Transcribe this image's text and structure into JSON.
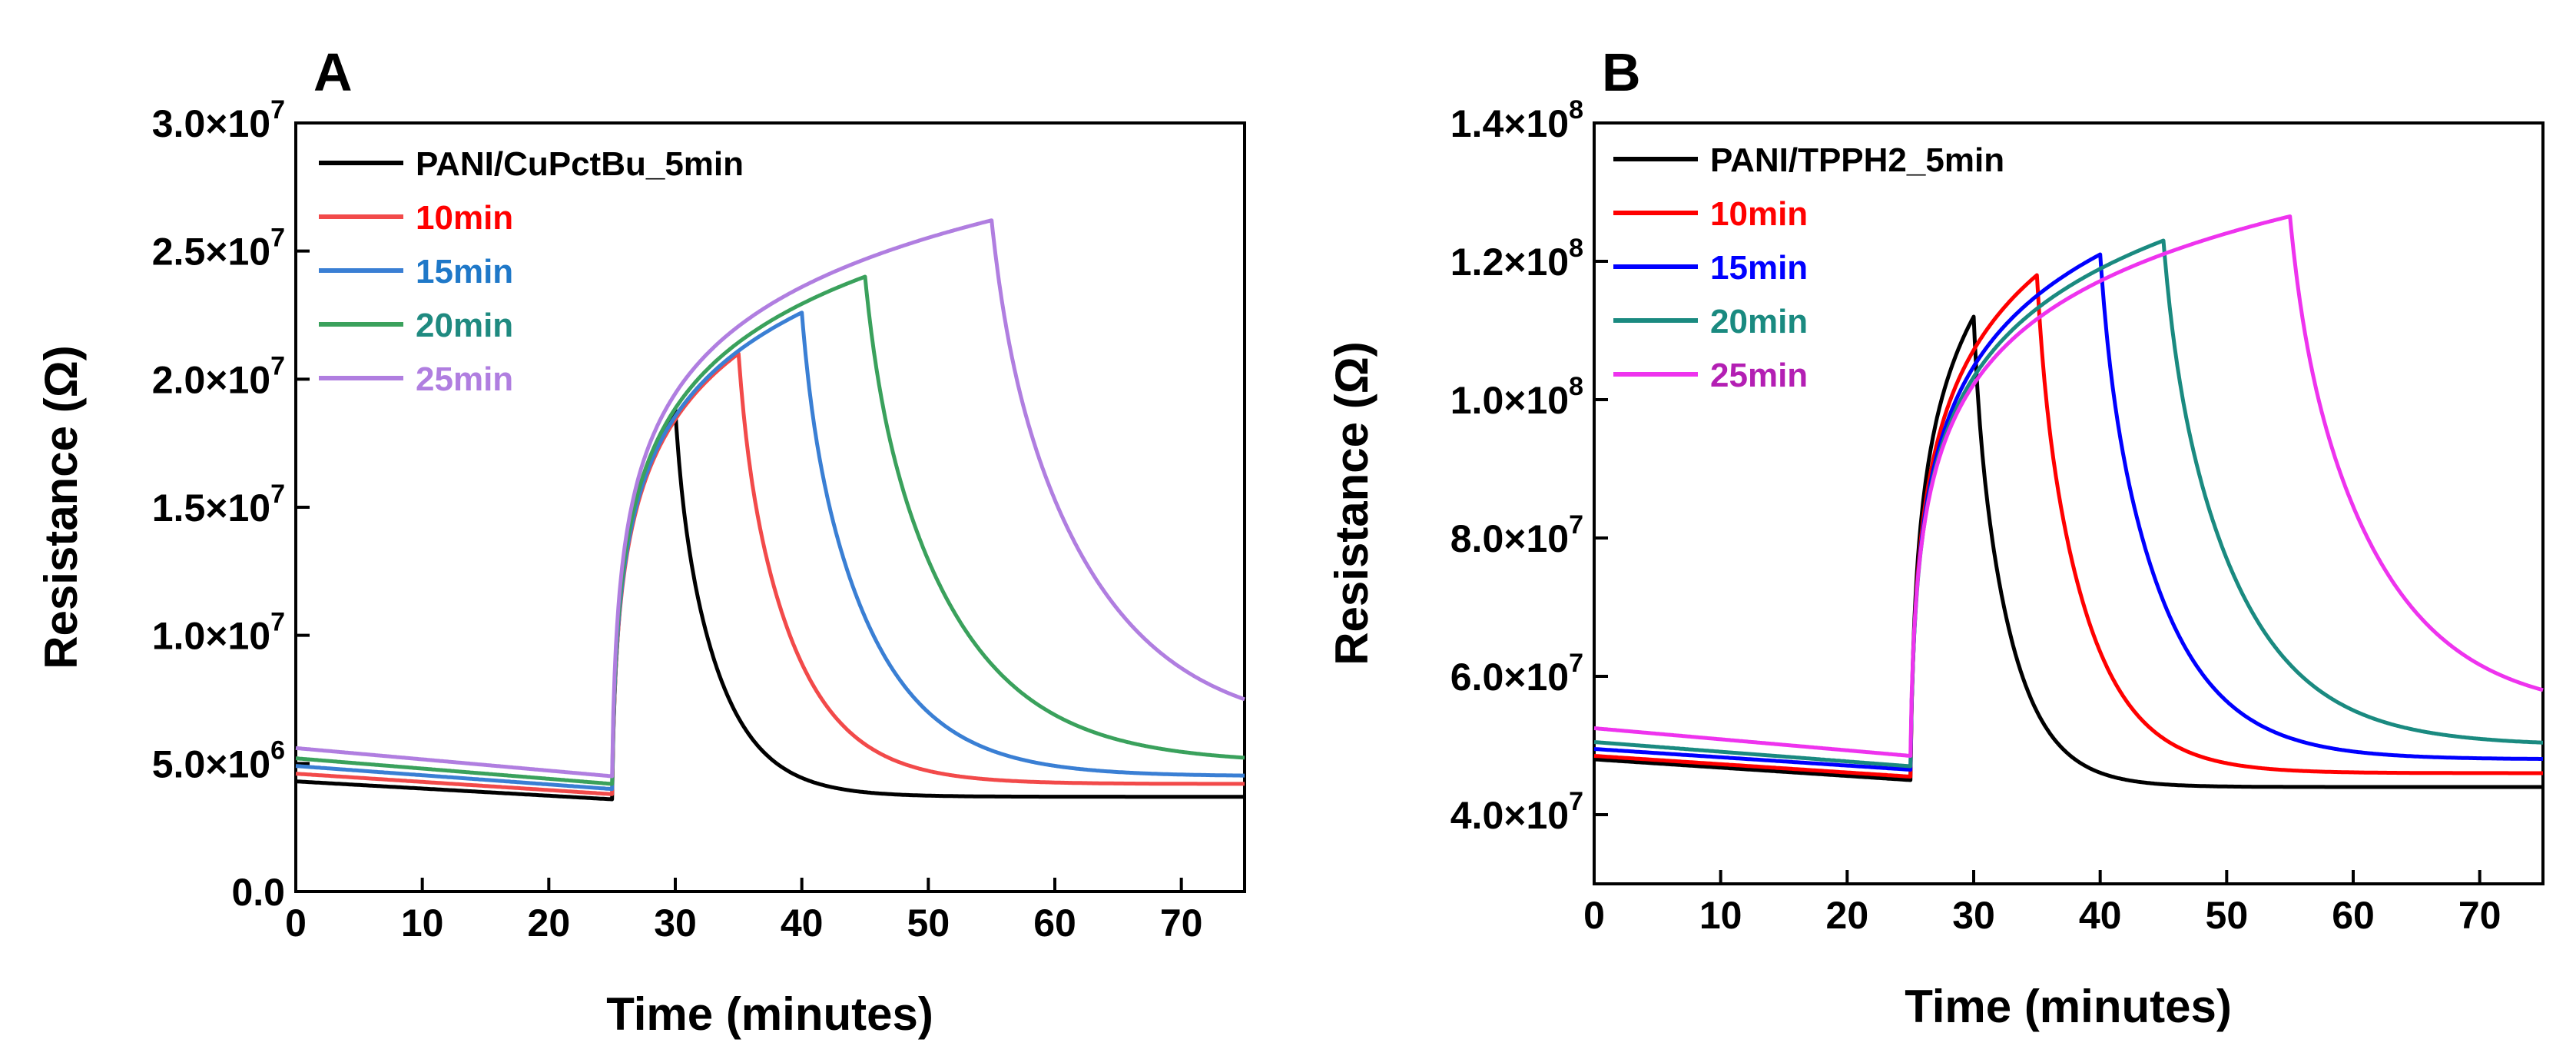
{
  "figure": {
    "x_tick_labels": [
      "0",
      "10",
      "20",
      "30",
      "40",
      "50",
      "60",
      "70"
    ]
  },
  "chart_data": [
    {
      "type": "line",
      "panel": "A",
      "xlabel": "Time (minutes)",
      "ylabel": "Resistance (Ω)",
      "xlim": [
        0,
        75
      ],
      "ylim": [
        0,
        30000000
      ],
      "ytick_values": [
        0,
        5000000,
        10000000,
        15000000,
        20000000,
        25000000,
        30000000
      ],
      "ytick_labels": [
        {
          "mantissa": "0.0",
          "exp": ""
        },
        {
          "mantissa": "5.0×10",
          "exp": "6"
        },
        {
          "mantissa": "1.0×10",
          "exp": "7"
        },
        {
          "mantissa": "1.5×10",
          "exp": "7"
        },
        {
          "mantissa": "2.0×10",
          "exp": "7"
        },
        {
          "mantissa": "2.5×10",
          "exp": "7"
        },
        {
          "mantissa": "3.0×10",
          "exp": "7"
        }
      ],
      "legend_position": "top-left",
      "grid": false,
      "series": [
        {
          "name": "PANI/CuPctBu_5min",
          "color": "#000000",
          "label_color": "#000000",
          "on": 25,
          "off": 30,
          "base_start": 4300000,
          "base_end_before": 3600000,
          "peak": 18800000,
          "end": 3700000,
          "tau": 3.5
        },
        {
          "name": "10min",
          "color": "#f24a4a",
          "label_color": "#ff0000",
          "on": 25,
          "off": 35,
          "base_start": 4600000,
          "base_end_before": 3800000,
          "peak": 21000000,
          "end": 4200000,
          "tau": 4.5
        },
        {
          "name": "15min",
          "color": "#3a7fd4",
          "label_color": "#1f78c8",
          "on": 25,
          "off": 40,
          "base_start": 4900000,
          "base_end_before": 4000000,
          "peak": 22600000,
          "end": 4500000,
          "tau": 5.5
        },
        {
          "name": "20min",
          "color": "#3aa15c",
          "label_color": "#1f8a80",
          "on": 25,
          "off": 45,
          "base_start": 5200000,
          "base_end_before": 4200000,
          "peak": 24000000,
          "end": 5000000,
          "tau": 7
        },
        {
          "name": "25min",
          "color": "#b07ee0",
          "label_color": "#b07ee0",
          "on": 25,
          "off": 55,
          "base_start": 5600000,
          "base_end_before": 4500000,
          "peak": 26200000,
          "end": 6100000,
          "tau": 8
        }
      ]
    },
    {
      "type": "line",
      "panel": "B",
      "xlabel": "Time (minutes)",
      "ylabel": "Resistance (Ω)",
      "xlim": [
        0,
        75
      ],
      "ylim": [
        30000000,
        140000000
      ],
      "ytick_values": [
        40000000,
        60000000,
        80000000,
        100000000,
        120000000,
        140000000
      ],
      "ytick_labels": [
        {
          "mantissa": "4.0×10",
          "exp": "7"
        },
        {
          "mantissa": "6.0×10",
          "exp": "7"
        },
        {
          "mantissa": "8.0×10",
          "exp": "7"
        },
        {
          "mantissa": "1.0×10",
          "exp": "8"
        },
        {
          "mantissa": "1.2×10",
          "exp": "8"
        },
        {
          "mantissa": "1.4×10",
          "exp": "8"
        }
      ],
      "legend_position": "top-left",
      "grid": false,
      "series": [
        {
          "name": "PANI/TPPH2_5min",
          "color": "#000000",
          "label_color": "#000000",
          "on": 25,
          "off": 30,
          "base_start": 48000000,
          "base_end_before": 45000000,
          "peak": 112000000,
          "end": 44000000,
          "tau": 3
        },
        {
          "name": "10min",
          "color": "#ff0000",
          "label_color": "#ff0000",
          "on": 25,
          "off": 35,
          "base_start": 48500000,
          "base_end_before": 45500000,
          "peak": 118000000,
          "end": 46000000,
          "tau": 4
        },
        {
          "name": "15min",
          "color": "#0000ff",
          "label_color": "#0000ff",
          "on": 25,
          "off": 40,
          "base_start": 49500000,
          "base_end_before": 46500000,
          "peak": 121000000,
          "end": 48000000,
          "tau": 5
        },
        {
          "name": "20min",
          "color": "#1a8a80",
          "label_color": "#1a8a80",
          "on": 25,
          "off": 45,
          "base_start": 50500000,
          "base_end_before": 47000000,
          "peak": 123000000,
          "end": 50000000,
          "tau": 6
        },
        {
          "name": "25min",
          "color": "#ee33ee",
          "label_color": "#b31fb3",
          "on": 25,
          "off": 55,
          "base_start": 52500000,
          "base_end_before": 48500000,
          "peak": 126500000,
          "end": 54500000,
          "tau": 7
        }
      ]
    }
  ]
}
